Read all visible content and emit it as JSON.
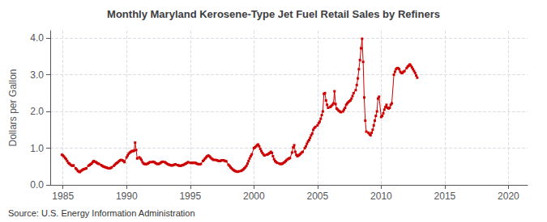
{
  "chart_data": {
    "type": "line",
    "title": "Monthly Maryland Kerosene-Type Jet Fuel Retail Sales by Refiners",
    "ylabel": "Dollars per Gallon",
    "source": "Source: U.S. Energy Information Administration",
    "color": "#cc0000",
    "marker": "square",
    "line_style": "solid",
    "grid": true,
    "xlim": [
      1984.0,
      2021.5
    ],
    "xticks": [
      1985,
      1990,
      1995,
      2000,
      2005,
      2010,
      2015,
      2020
    ],
    "ylim": [
      0.0,
      4.2
    ],
    "yticks": [
      {
        "value": 0.0,
        "label": "0.0"
      },
      {
        "value": 1.0,
        "label": "1.0"
      },
      {
        "value": 2.0,
        "label": "2.0"
      },
      {
        "value": 3.0,
        "label": "3.0"
      },
      {
        "value": 4.0,
        "label": "4.0"
      }
    ],
    "x": [
      1984.917,
      1985.0,
      1985.083,
      1985.167,
      1985.25,
      1985.333,
      1985.417,
      1985.5,
      1985.583,
      1985.667,
      1985.75,
      1985.833,
      1986.0,
      1986.083,
      1986.167,
      1986.25,
      1986.333,
      1986.417,
      1986.5,
      1986.583,
      1986.667,
      1986.75,
      1986.833,
      1987.0,
      1987.083,
      1987.167,
      1987.25,
      1987.333,
      1987.417,
      1987.5,
      1987.583,
      1987.667,
      1987.75,
      1987.833,
      1988.0,
      1988.083,
      1988.167,
      1988.25,
      1988.333,
      1988.417,
      1988.5,
      1988.583,
      1988.667,
      1988.75,
      1988.833,
      1989.0,
      1989.083,
      1989.167,
      1989.25,
      1989.333,
      1989.417,
      1989.5,
      1989.583,
      1989.667,
      1989.75,
      1989.833,
      1990.0,
      1990.083,
      1990.167,
      1990.25,
      1990.333,
      1990.417,
      1990.5,
      1990.583,
      1990.667,
      1990.75,
      1990.833,
      1991.0,
      1991.083,
      1991.167,
      1991.25,
      1991.333,
      1991.417,
      1991.5,
      1991.583,
      1991.667,
      1991.75,
      1991.833,
      1992.0,
      1992.083,
      1992.167,
      1992.25,
      1992.333,
      1992.417,
      1992.5,
      1992.583,
      1992.667,
      1992.75,
      1992.833,
      1993.0,
      1993.083,
      1993.167,
      1993.25,
      1993.333,
      1993.417,
      1993.5,
      1993.583,
      1993.667,
      1993.75,
      1993.833,
      1994.0,
      1994.083,
      1994.167,
      1994.25,
      1994.333,
      1994.417,
      1994.5,
      1994.583,
      1994.667,
      1994.75,
      1994.833,
      1995.0,
      1995.083,
      1995.167,
      1995.25,
      1995.333,
      1995.417,
      1995.5,
      1995.583,
      1995.667,
      1995.75,
      1995.833,
      1996.0,
      1996.083,
      1996.167,
      1996.25,
      1996.333,
      1996.417,
      1996.5,
      1996.583,
      1996.667,
      1996.75,
      1996.833,
      1997.0,
      1997.083,
      1997.167,
      1997.25,
      1997.333,
      1997.417,
      1997.5,
      1997.583,
      1997.667,
      1997.75,
      1997.833,
      1998.0,
      1998.083,
      1998.167,
      1998.25,
      1998.333,
      1998.417,
      1998.5,
      1998.583,
      1998.667,
      1998.75,
      1998.833,
      1999.0,
      1999.083,
      1999.167,
      1999.25,
      1999.333,
      1999.417,
      1999.5,
      1999.583,
      1999.667,
      1999.75,
      1999.833,
      2000.0,
      2000.083,
      2000.167,
      2000.25,
      2000.333,
      2000.417,
      2000.5,
      2000.583,
      2000.667,
      2000.75,
      2000.833,
      2001.0,
      2001.083,
      2001.167,
      2001.25,
      2001.333,
      2001.417,
      2001.5,
      2001.583,
      2001.667,
      2001.75,
      2001.833,
      2002.0,
      2002.083,
      2002.167,
      2002.25,
      2002.333,
      2002.417,
      2002.5,
      2002.583,
      2002.667,
      2002.75,
      2002.833,
      2003.0,
      2003.083,
      2003.167,
      2003.25,
      2003.333,
      2003.417,
      2003.5,
      2003.583,
      2003.667,
      2003.75,
      2003.833,
      2004.0,
      2004.083,
      2004.167,
      2004.25,
      2004.333,
      2004.417,
      2004.5,
      2004.583,
      2004.667,
      2004.75,
      2004.833,
      2005.0,
      2005.083,
      2005.167,
      2005.25,
      2005.333,
      2005.417,
      2005.5,
      2005.583,
      2005.667,
      2005.75,
      2005.833,
      2006.0,
      2006.083,
      2006.167,
      2006.25,
      2006.333,
      2006.417,
      2006.5,
      2006.583,
      2006.667,
      2006.75,
      2006.833,
      2007.0,
      2007.083,
      2007.167,
      2007.25,
      2007.333,
      2007.417,
      2007.5,
      2007.583,
      2007.667,
      2007.75,
      2007.833,
      2008.0,
      2008.083,
      2008.167,
      2008.25,
      2008.333,
      2008.417,
      2008.5,
      2008.583,
      2008.667,
      2008.75,
      2008.833,
      2009.0,
      2009.083,
      2009.167,
      2009.25,
      2009.333,
      2009.417,
      2009.5,
      2009.583,
      2009.667,
      2009.75,
      2009.833,
      2010.0,
      2010.083,
      2010.167,
      2010.25,
      2010.333,
      2010.417,
      2010.5,
      2010.583,
      2010.667,
      2010.75,
      2010.833,
      2011.0,
      2011.083,
      2011.167,
      2011.25,
      2011.333,
      2011.417,
      2011.5,
      2011.583,
      2011.667,
      2011.75,
      2011.833,
      2012.0,
      2012.083,
      2012.167,
      2012.25,
      2012.333,
      2012.417,
      2012.5,
      2012.583,
      2012.667,
      2012.75,
      2012.833
    ],
    "values": [
      0.82,
      0.8,
      0.77,
      0.73,
      0.7,
      0.65,
      0.6,
      0.58,
      0.55,
      0.53,
      0.52,
      0.53,
      0.45,
      0.42,
      0.38,
      0.36,
      0.35,
      0.38,
      0.4,
      0.42,
      0.43,
      0.44,
      0.45,
      0.52,
      0.54,
      0.56,
      0.58,
      0.62,
      0.65,
      0.63,
      0.62,
      0.6,
      0.58,
      0.57,
      0.54,
      0.52,
      0.5,
      0.49,
      0.48,
      0.47,
      0.46,
      0.45,
      0.45,
      0.46,
      0.48,
      0.52,
      0.55,
      0.58,
      0.6,
      0.62,
      0.65,
      0.67,
      0.68,
      0.67,
      0.65,
      0.62,
      0.75,
      0.8,
      0.85,
      0.88,
      0.9,
      0.92,
      0.92,
      0.93,
      1.15,
      0.95,
      0.72,
      0.75,
      0.72,
      0.68,
      0.62,
      0.58,
      0.57,
      0.56,
      0.57,
      0.58,
      0.6,
      0.62,
      0.62,
      0.63,
      0.62,
      0.6,
      0.58,
      0.57,
      0.57,
      0.58,
      0.6,
      0.62,
      0.63,
      0.62,
      0.6,
      0.58,
      0.56,
      0.55,
      0.54,
      0.53,
      0.53,
      0.54,
      0.55,
      0.56,
      0.54,
      0.53,
      0.52,
      0.52,
      0.53,
      0.54,
      0.55,
      0.57,
      0.58,
      0.6,
      0.62,
      0.6,
      0.6,
      0.6,
      0.6,
      0.6,
      0.6,
      0.58,
      0.57,
      0.56,
      0.56,
      0.57,
      0.65,
      0.68,
      0.72,
      0.75,
      0.78,
      0.8,
      0.78,
      0.75,
      0.72,
      0.7,
      0.68,
      0.68,
      0.67,
      0.66,
      0.65,
      0.65,
      0.66,
      0.67,
      0.67,
      0.66,
      0.65,
      0.64,
      0.55,
      0.52,
      0.48,
      0.45,
      0.42,
      0.4,
      0.38,
      0.37,
      0.36,
      0.36,
      0.37,
      0.38,
      0.4,
      0.42,
      0.45,
      0.48,
      0.52,
      0.58,
      0.65,
      0.72,
      0.78,
      0.83,
      1.0,
      1.02,
      1.05,
      1.08,
      1.1,
      1.05,
      0.98,
      0.92,
      0.87,
      0.83,
      0.8,
      0.82,
      0.83,
      0.85,
      0.87,
      0.9,
      0.87,
      0.78,
      0.7,
      0.65,
      0.62,
      0.6,
      0.58,
      0.57,
      0.57,
      0.58,
      0.6,
      0.62,
      0.65,
      0.68,
      0.7,
      0.72,
      0.73,
      0.88,
      1.02,
      1.08,
      0.9,
      0.82,
      0.78,
      0.8,
      0.82,
      0.85,
      0.88,
      0.9,
      1.0,
      1.05,
      1.12,
      1.18,
      1.22,
      1.28,
      1.35,
      1.4,
      1.5,
      1.55,
      1.58,
      1.62,
      1.68,
      1.72,
      1.8,
      1.9,
      2.0,
      2.48,
      2.5,
      2.3,
      2.18,
      2.1,
      2.12,
      2.15,
      2.18,
      2.22,
      2.55,
      2.2,
      2.08,
      2.05,
      2.02,
      2.0,
      1.98,
      2.0,
      2.05,
      2.1,
      2.18,
      2.22,
      2.25,
      2.28,
      2.3,
      2.35,
      2.42,
      2.5,
      2.58,
      2.72,
      2.9,
      3.15,
      3.4,
      3.72,
      3.98,
      3.35,
      2.38,
      1.75,
      1.45,
      1.42,
      1.38,
      1.35,
      1.42,
      1.5,
      1.62,
      1.75,
      1.88,
      2.0,
      2.35,
      2.4,
      1.85,
      1.88,
      1.95,
      2.05,
      2.12,
      2.18,
      2.1,
      2.08,
      2.1,
      2.18,
      2.22,
      3.0,
      3.08,
      3.15,
      3.18,
      3.18,
      3.15,
      3.08,
      3.05,
      3.05,
      3.08,
      3.1,
      3.18,
      3.22,
      3.25,
      3.28,
      3.25,
      3.2,
      3.15,
      3.1,
      3.05,
      2.98,
      2.92
    ]
  }
}
